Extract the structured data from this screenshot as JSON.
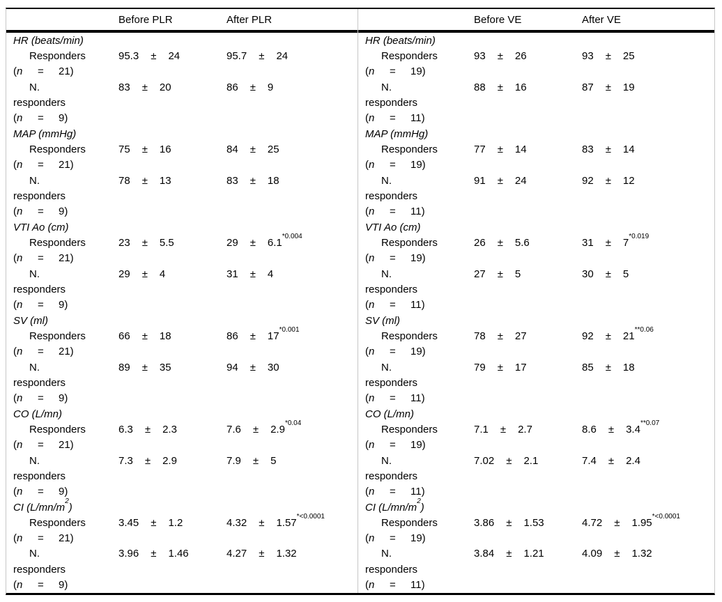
{
  "page": {
    "background": "#ffffff",
    "rule_color": "#000000",
    "divider_color": "#c6c6c6"
  },
  "labels": {
    "paren_open": "(",
    "n_char": "n",
    "equals": "=",
    "plus_minus": "±",
    "responders": "Responders",
    "nonresp_line1": "N.",
    "nonresp_line2": "responders"
  },
  "table": {
    "halves": [
      {
        "columns": [
          "Before PLR",
          "After PLR"
        ],
        "blocks": [
          {
            "variable": "HR (beats/min)",
            "variable_sup": "",
            "variable_end": "",
            "responders": {
              "n_close": "21)",
              "cells": [
                {
                  "mean": "95.3",
                  "sd": "24",
                  "sup": ""
                },
                {
                  "mean": "95.7",
                  "sd": "24",
                  "sup": ""
                }
              ]
            },
            "nonresponders": {
              "n_close": "9)",
              "cells": [
                {
                  "mean": "83",
                  "sd": "20",
                  "sup": ""
                },
                {
                  "mean": "86",
                  "sd": "9",
                  "sup": ""
                }
              ]
            }
          },
          {
            "variable": "MAP (mmHg)",
            "variable_sup": "",
            "variable_end": "",
            "responders": {
              "n_close": "21)",
              "cells": [
                {
                  "mean": "75",
                  "sd": "16",
                  "sup": ""
                },
                {
                  "mean": "84",
                  "sd": "25",
                  "sup": ""
                }
              ]
            },
            "nonresponders": {
              "n_close": "9)",
              "cells": [
                {
                  "mean": "78",
                  "sd": "13",
                  "sup": ""
                },
                {
                  "mean": "83",
                  "sd": "18",
                  "sup": ""
                }
              ]
            }
          },
          {
            "variable": "VTI Ao (cm)",
            "variable_sup": "",
            "variable_end": "",
            "responders": {
              "n_close": "21)",
              "cells": [
                {
                  "mean": "23",
                  "sd": "5.5",
                  "sup": ""
                },
                {
                  "mean": "29",
                  "sd": "6.1",
                  "sup": "*0.004"
                }
              ]
            },
            "nonresponders": {
              "n_close": "9)",
              "cells": [
                {
                  "mean": "29",
                  "sd": "4",
                  "sup": ""
                },
                {
                  "mean": "31",
                  "sd": "4",
                  "sup": ""
                }
              ]
            }
          },
          {
            "variable": "SV (ml)",
            "variable_sup": "",
            "variable_end": "",
            "responders": {
              "n_close": "21)",
              "cells": [
                {
                  "mean": "66",
                  "sd": "18",
                  "sup": ""
                },
                {
                  "mean": "86",
                  "sd": "17",
                  "sup": "*0.001"
                }
              ]
            },
            "nonresponders": {
              "n_close": "9)",
              "cells": [
                {
                  "mean": "89",
                  "sd": "35",
                  "sup": ""
                },
                {
                  "mean": "94",
                  "sd": "30",
                  "sup": ""
                }
              ]
            }
          },
          {
            "variable": "CO (L/mn)",
            "variable_sup": "",
            "variable_end": "",
            "responders": {
              "n_close": "21)",
              "cells": [
                {
                  "mean": "6.3",
                  "sd": "2.3",
                  "sup": ""
                },
                {
                  "mean": "7.6",
                  "sd": "2.9",
                  "sup": "*0.04"
                }
              ]
            },
            "nonresponders": {
              "n_close": "9)",
              "cells": [
                {
                  "mean": "7.3",
                  "sd": "2.9",
                  "sup": ""
                },
                {
                  "mean": "7.9",
                  "sd": "5",
                  "sup": ""
                }
              ]
            }
          },
          {
            "variable": "CI (L/mn/m",
            "variable_sup": "2",
            "variable_end": ")",
            "responders": {
              "n_close": "21)",
              "cells": [
                {
                  "mean": "3.45",
                  "sd": "1.2",
                  "sup": ""
                },
                {
                  "mean": "4.32",
                  "sd": "1.57",
                  "sup": "*<0.0001"
                }
              ]
            },
            "nonresponders": {
              "n_close": "9)",
              "cells": [
                {
                  "mean": "3.96",
                  "sd": "1.46",
                  "sup": ""
                },
                {
                  "mean": "4.27",
                  "sd": "1.32",
                  "sup": ""
                }
              ]
            }
          }
        ]
      },
      {
        "columns": [
          "Before VE",
          "After VE"
        ],
        "blocks": [
          {
            "variable": "HR (beats/min)",
            "variable_sup": "",
            "variable_end": "",
            "responders": {
              "n_close": "19)",
              "cells": [
                {
                  "mean": "93",
                  "sd": "26",
                  "sup": ""
                },
                {
                  "mean": "93",
                  "sd": "25",
                  "sup": ""
                }
              ]
            },
            "nonresponders": {
              "n_close": "11)",
              "cells": [
                {
                  "mean": "88",
                  "sd": "16",
                  "sup": ""
                },
                {
                  "mean": "87",
                  "sd": "19",
                  "sup": ""
                }
              ]
            }
          },
          {
            "variable": "MAP (mmHg)",
            "variable_sup": "",
            "variable_end": "",
            "responders": {
              "n_close": "19)",
              "cells": [
                {
                  "mean": "77",
                  "sd": "14",
                  "sup": ""
                },
                {
                  "mean": "83",
                  "sd": "14",
                  "sup": ""
                }
              ]
            },
            "nonresponders": {
              "n_close": "11)",
              "cells": [
                {
                  "mean": "91",
                  "sd": "24",
                  "sup": ""
                },
                {
                  "mean": "92",
                  "sd": "12",
                  "sup": ""
                }
              ]
            }
          },
          {
            "variable": "VTI Ao (cm)",
            "variable_sup": "",
            "variable_end": "",
            "responders": {
              "n_close": "19)",
              "cells": [
                {
                  "mean": "26",
                  "sd": "5.6",
                  "sup": ""
                },
                {
                  "mean": "31",
                  "sd": "7",
                  "sup": "*0.019"
                }
              ]
            },
            "nonresponders": {
              "n_close": "11)",
              "cells": [
                {
                  "mean": "27",
                  "sd": "5",
                  "sup": ""
                },
                {
                  "mean": "30",
                  "sd": "5",
                  "sup": ""
                }
              ]
            }
          },
          {
            "variable": "SV (ml)",
            "variable_sup": "",
            "variable_end": "",
            "responders": {
              "n_close": "19)",
              "cells": [
                {
                  "mean": "78",
                  "sd": "27",
                  "sup": ""
                },
                {
                  "mean": "92",
                  "sd": "21",
                  "sup": "**0.06"
                }
              ]
            },
            "nonresponders": {
              "n_close": "11)",
              "cells": [
                {
                  "mean": "79",
                  "sd": "17",
                  "sup": ""
                },
                {
                  "mean": "85",
                  "sd": "18",
                  "sup": ""
                }
              ]
            }
          },
          {
            "variable": "CO (L/mn)",
            "variable_sup": "",
            "variable_end": "",
            "responders": {
              "n_close": "19)",
              "cells": [
                {
                  "mean": "7.1",
                  "sd": "2.7",
                  "sup": ""
                },
                {
                  "mean": "8.6",
                  "sd": "3.4",
                  "sup": "**0.07"
                }
              ]
            },
            "nonresponders": {
              "n_close": "11)",
              "cells": [
                {
                  "mean": "7.02",
                  "sd": "2.1",
                  "sup": ""
                },
                {
                  "mean": "7.4",
                  "sd": "2.4",
                  "sup": ""
                }
              ]
            }
          },
          {
            "variable": "CI (L/mn/m",
            "variable_sup": "2",
            "variable_end": ")",
            "responders": {
              "n_close": "19)",
              "cells": [
                {
                  "mean": "3.86",
                  "sd": "1.53",
                  "sup": ""
                },
                {
                  "mean": "4.72",
                  "sd": "1.95",
                  "sup": "*<0.0001"
                }
              ]
            },
            "nonresponders": {
              "n_close": "11)",
              "cells": [
                {
                  "mean": "3.84",
                  "sd": "1.21",
                  "sup": ""
                },
                {
                  "mean": "4.09",
                  "sd": "1.32",
                  "sup": ""
                }
              ]
            }
          }
        ]
      }
    ]
  }
}
